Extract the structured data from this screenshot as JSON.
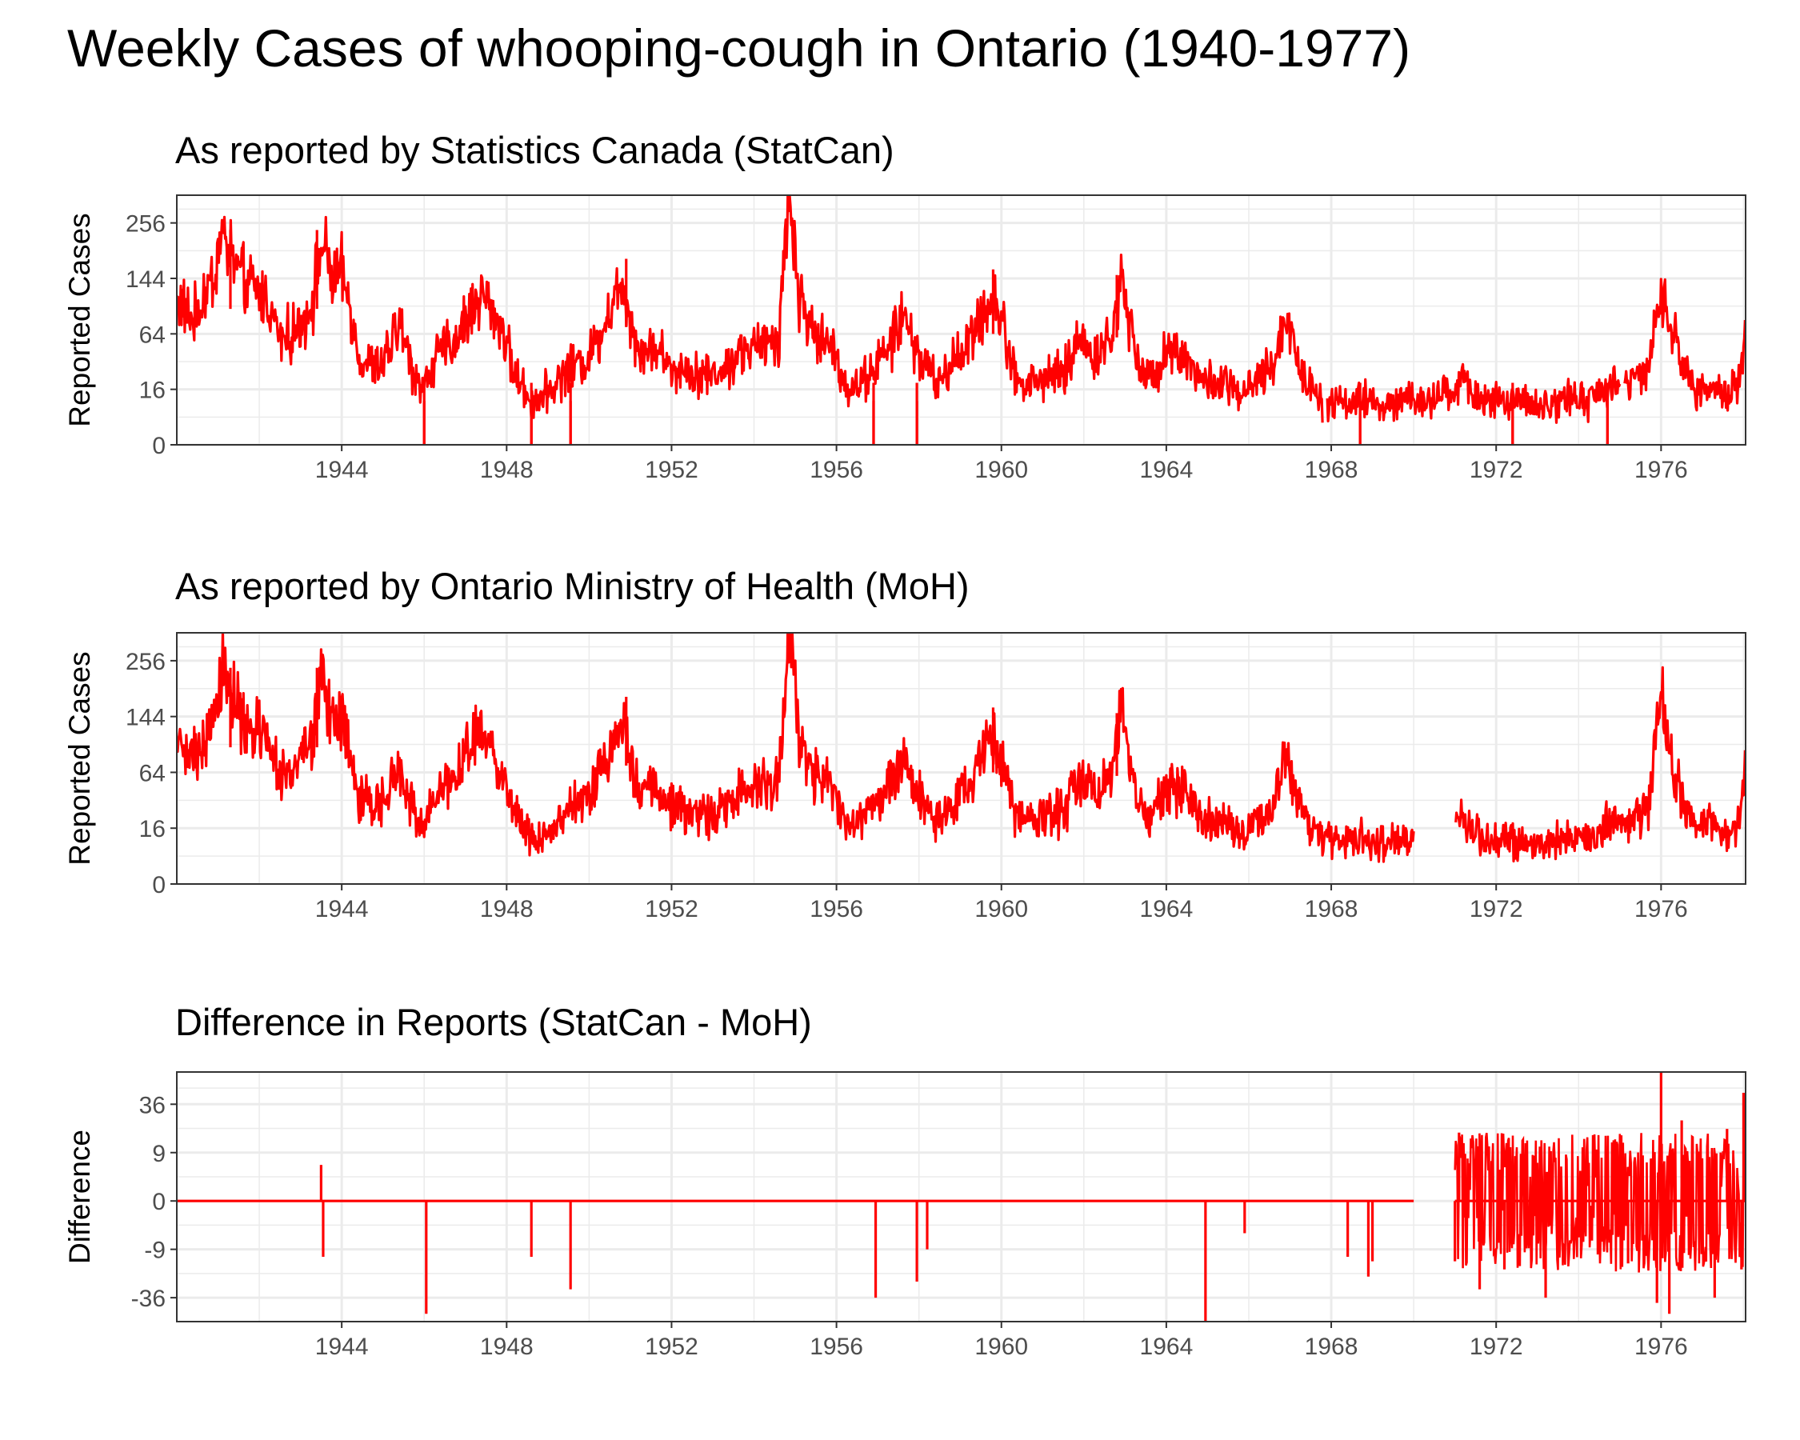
{
  "title": "Weekly Cases of whooping-cough in Ontario (1940-1977)",
  "line_color": "#ff0000",
  "chart_data": [
    {
      "type": "line",
      "title": "As reported by Statistics Canada (StatCan)",
      "ylabel": "Reported Cases",
      "xlim": [
        1940.0,
        1978.05
      ],
      "x_ticks": [
        "1944",
        "1948",
        "1952",
        "1956",
        "1960",
        "1964",
        "1968",
        "1972",
        "1976"
      ],
      "y_scale": "sqrt",
      "ylim": [
        0,
        324
      ],
      "y_ticks": [
        "0",
        "16",
        "64",
        "144",
        "256"
      ],
      "gaps": [
        [
          1967.8,
          1967.9
        ],
        [
          1975.0,
          1975.1
        ]
      ],
      "series": [
        {
          "anchors": [
            [
              1940.0,
              110
            ],
            [
              1940.4,
              80
            ],
            [
              1940.9,
              150
            ],
            [
              1941.1,
              230
            ],
            [
              1941.6,
              140
            ],
            [
              1942.2,
              110
            ],
            [
              1942.5,
              60
            ],
            [
              1942.9,
              65
            ],
            [
              1943.3,
              110
            ],
            [
              1943.5,
              210
            ],
            [
              1943.8,
              140
            ],
            [
              1944.0,
              150
            ],
            [
              1944.2,
              100
            ],
            [
              1944.4,
              40
            ],
            [
              1944.9,
              30
            ],
            [
              1945.2,
              50
            ],
            [
              1945.4,
              80
            ],
            [
              1945.7,
              30
            ],
            [
              1946.0,
              17
            ],
            [
              1946.3,
              40
            ],
            [
              1946.8,
              60
            ],
            [
              1947.1,
              90
            ],
            [
              1947.4,
              120
            ],
            [
              1947.9,
              70
            ],
            [
              1948.2,
              25
            ],
            [
              1948.6,
              10
            ],
            [
              1949.0,
              15
            ],
            [
              1949.5,
              30
            ],
            [
              1950.0,
              40
            ],
            [
              1950.3,
              70
            ],
            [
              1950.8,
              140
            ],
            [
              1951.2,
              45
            ],
            [
              1951.6,
              50
            ],
            [
              1952.0,
              30
            ],
            [
              1952.4,
              30
            ],
            [
              1952.9,
              25
            ],
            [
              1953.3,
              30
            ],
            [
              1953.7,
              45
            ],
            [
              1954.2,
              50
            ],
            [
              1954.6,
              60
            ],
            [
              1954.85,
              340
            ],
            [
              1955.1,
              110
            ],
            [
              1955.5,
              60
            ],
            [
              1955.9,
              50
            ],
            [
              1956.3,
              15
            ],
            [
              1956.6,
              20
            ],
            [
              1957.0,
              35
            ],
            [
              1957.3,
              50
            ],
            [
              1957.6,
              90
            ],
            [
              1957.8,
              60
            ],
            [
              1958.1,
              35
            ],
            [
              1958.5,
              20
            ],
            [
              1958.9,
              40
            ],
            [
              1959.3,
              60
            ],
            [
              1959.8,
              120
            ],
            [
              1960.1,
              60
            ],
            [
              1960.4,
              20
            ],
            [
              1960.8,
              20
            ],
            [
              1961.2,
              25
            ],
            [
              1961.5,
              25
            ],
            [
              1961.9,
              60
            ],
            [
              1962.3,
              40
            ],
            [
              1962.7,
              60
            ],
            [
              1962.9,
              150
            ],
            [
              1963.3,
              40
            ],
            [
              1963.6,
              20
            ],
            [
              1964.0,
              50
            ],
            [
              1964.5,
              40
            ],
            [
              1964.9,
              20
            ],
            [
              1965.4,
              20
            ],
            [
              1965.9,
              12
            ],
            [
              1966.3,
              25
            ],
            [
              1966.6,
              30
            ],
            [
              1966.9,
              90
            ],
            [
              1967.3,
              25
            ],
            [
              1967.8,
              10
            ],
            [
              1968.3,
              10
            ],
            [
              1968.8,
              10
            ],
            [
              1969.3,
              8
            ],
            [
              1969.8,
              10
            ],
            [
              1970.5,
              10
            ],
            [
              1971.2,
              20
            ],
            [
              1971.7,
              10
            ],
            [
              1972.2,
              10
            ],
            [
              1972.8,
              8
            ],
            [
              1973.2,
              8
            ],
            [
              1973.8,
              12
            ],
            [
              1974.3,
              10
            ],
            [
              1974.8,
              20
            ],
            [
              1975.3,
              20
            ],
            [
              1975.7,
              30
            ],
            [
              1976.0,
              120
            ],
            [
              1976.3,
              60
            ],
            [
              1976.8,
              15
            ],
            [
              1977.2,
              20
            ],
            [
              1977.6,
              12
            ],
            [
              1977.9,
              20
            ],
            [
              1978.05,
              70
            ]
          ],
          "spikes": [
            [
              1941.3,
              240
            ],
            [
              1943.4,
              240
            ],
            [
              1946.0,
              0
            ],
            [
              1948.6,
              0
            ],
            [
              1949.55,
              0
            ],
            [
              1950.9,
              180
            ],
            [
              1956.9,
              0
            ],
            [
              1957.95,
              0
            ],
            [
              1959.8,
              160
            ],
            [
              1962.8,
              150
            ],
            [
              1968.7,
              0
            ],
            [
              1972.4,
              0
            ],
            [
              1974.7,
              0
            ]
          ]
        }
      ]
    },
    {
      "type": "line",
      "title": "As reported by Ontario Ministry of Health (MoH)",
      "ylabel": "Reported Cases",
      "xlim": [
        1940.0,
        1978.05
      ],
      "x_ticks": [
        "1944",
        "1948",
        "1952",
        "1956",
        "1960",
        "1964",
        "1968",
        "1972",
        "1976"
      ],
      "y_scale": "sqrt",
      "ylim": [
        0,
        324
      ],
      "y_ticks": [
        "0",
        "16",
        "64",
        "144",
        "256"
      ],
      "gaps": [
        [
          1970.0,
          1971.0
        ]
      ],
      "series": [
        {
          "anchors": [
            [
              1940.0,
              110
            ],
            [
              1940.4,
              80
            ],
            [
              1940.9,
              150
            ],
            [
              1941.1,
              230
            ],
            [
              1941.6,
              140
            ],
            [
              1942.2,
              110
            ],
            [
              1942.5,
              60
            ],
            [
              1942.9,
              65
            ],
            [
              1943.3,
              110
            ],
            [
              1943.5,
              210
            ],
            [
              1943.8,
              140
            ],
            [
              1944.0,
              150
            ],
            [
              1944.2,
              100
            ],
            [
              1944.4,
              40
            ],
            [
              1944.9,
              30
            ],
            [
              1945.2,
              50
            ],
            [
              1945.4,
              80
            ],
            [
              1945.7,
              30
            ],
            [
              1946.0,
              17
            ],
            [
              1946.3,
              40
            ],
            [
              1946.8,
              60
            ],
            [
              1947.1,
              90
            ],
            [
              1947.4,
              120
            ],
            [
              1947.9,
              70
            ],
            [
              1948.2,
              25
            ],
            [
              1948.6,
              10
            ],
            [
              1949.0,
              15
            ],
            [
              1949.5,
              30
            ],
            [
              1950.0,
              40
            ],
            [
              1950.3,
              70
            ],
            [
              1950.8,
              140
            ],
            [
              1951.2,
              45
            ],
            [
              1951.6,
              50
            ],
            [
              1952.0,
              30
            ],
            [
              1952.4,
              30
            ],
            [
              1952.9,
              25
            ],
            [
              1953.3,
              30
            ],
            [
              1953.7,
              45
            ],
            [
              1954.2,
              50
            ],
            [
              1954.6,
              60
            ],
            [
              1954.85,
              340
            ],
            [
              1955.1,
              110
            ],
            [
              1955.5,
              60
            ],
            [
              1955.9,
              50
            ],
            [
              1956.3,
              15
            ],
            [
              1956.6,
              20
            ],
            [
              1957.0,
              35
            ],
            [
              1957.3,
              50
            ],
            [
              1957.6,
              90
            ],
            [
              1957.8,
              60
            ],
            [
              1958.1,
              35
            ],
            [
              1958.5,
              20
            ],
            [
              1958.9,
              40
            ],
            [
              1959.3,
              60
            ],
            [
              1959.8,
              120
            ],
            [
              1960.1,
              60
            ],
            [
              1960.4,
              20
            ],
            [
              1960.8,
              20
            ],
            [
              1961.2,
              25
            ],
            [
              1961.5,
              25
            ],
            [
              1961.9,
              60
            ],
            [
              1962.3,
              40
            ],
            [
              1962.7,
              60
            ],
            [
              1962.9,
              150
            ],
            [
              1963.3,
              40
            ],
            [
              1963.6,
              20
            ],
            [
              1964.0,
              50
            ],
            [
              1964.5,
              40
            ],
            [
              1964.9,
              20
            ],
            [
              1965.4,
              20
            ],
            [
              1965.9,
              12
            ],
            [
              1966.3,
              25
            ],
            [
              1966.6,
              30
            ],
            [
              1966.9,
              90
            ],
            [
              1967.3,
              25
            ],
            [
              1967.8,
              10
            ],
            [
              1968.3,
              10
            ],
            [
              1968.8,
              10
            ],
            [
              1969.3,
              8
            ],
            [
              1969.8,
              10
            ],
            [
              1970.0,
              10
            ],
            [
              1971.0,
              25
            ],
            [
              1971.2,
              20
            ],
            [
              1971.7,
              10
            ],
            [
              1972.2,
              10
            ],
            [
              1972.8,
              8
            ],
            [
              1973.2,
              8
            ],
            [
              1973.8,
              12
            ],
            [
              1974.3,
              10
            ],
            [
              1974.8,
              20
            ],
            [
              1975.3,
              20
            ],
            [
              1975.7,
              30
            ],
            [
              1976.0,
              200
            ],
            [
              1976.3,
              60
            ],
            [
              1976.8,
              15
            ],
            [
              1977.2,
              20
            ],
            [
              1977.6,
              12
            ],
            [
              1977.9,
              20
            ],
            [
              1978.05,
              70
            ]
          ],
          "spikes": [
            [
              1941.3,
              240
            ],
            [
              1943.4,
              240
            ],
            [
              1950.9,
              180
            ],
            [
              1959.8,
              160
            ],
            [
              1962.8,
              150
            ]
          ]
        }
      ]
    },
    {
      "type": "line",
      "title": "Difference in Reports (StatCan - MoH)",
      "ylabel": "Difference",
      "xlim": [
        1940.0,
        1978.05
      ],
      "x_ticks": [
        "1944",
        "1948",
        "1952",
        "1956",
        "1960",
        "1964",
        "1968",
        "1972",
        "1976"
      ],
      "y_scale": "signed-sqrt",
      "ylim": [
        -56,
        64
      ],
      "y_ticks": [
        "-36",
        "-9",
        "0",
        "9",
        "36"
      ],
      "baseline": [
        [
          1940.0,
          1970.0
        ],
        [
          1971.0,
          1978.05
        ]
      ],
      "dense_regions": [
        [
          1971.0,
          1978.05,
          -20,
          18
        ]
      ],
      "series": [
        {
          "events": [
            [
              1943.5,
              5
            ],
            [
              1943.55,
              -12
            ],
            [
              1946.05,
              -49
            ],
            [
              1948.6,
              -12
            ],
            [
              1949.55,
              -30
            ],
            [
              1956.95,
              -36
            ],
            [
              1957.95,
              -25
            ],
            [
              1958.2,
              -9
            ],
            [
              1964.95,
              -64
            ],
            [
              1965.9,
              -4
            ],
            [
              1968.4,
              -12
            ],
            [
              1968.9,
              -22
            ],
            [
              1969.0,
              -14
            ],
            [
              1971.0,
              -14
            ],
            [
              1971.1,
              18
            ],
            [
              1971.6,
              -30
            ],
            [
              1972.2,
              -18
            ],
            [
              1973.2,
              -36
            ],
            [
              1975.2,
              -15
            ],
            [
              1975.9,
              -40
            ],
            [
              1976.0,
              64
            ],
            [
              1976.2,
              -49
            ],
            [
              1976.5,
              25
            ],
            [
              1977.3,
              -36
            ],
            [
              1977.6,
              20
            ],
            [
              1977.95,
              -18
            ],
            [
              1978.0,
              45
            ]
          ]
        }
      ]
    }
  ]
}
